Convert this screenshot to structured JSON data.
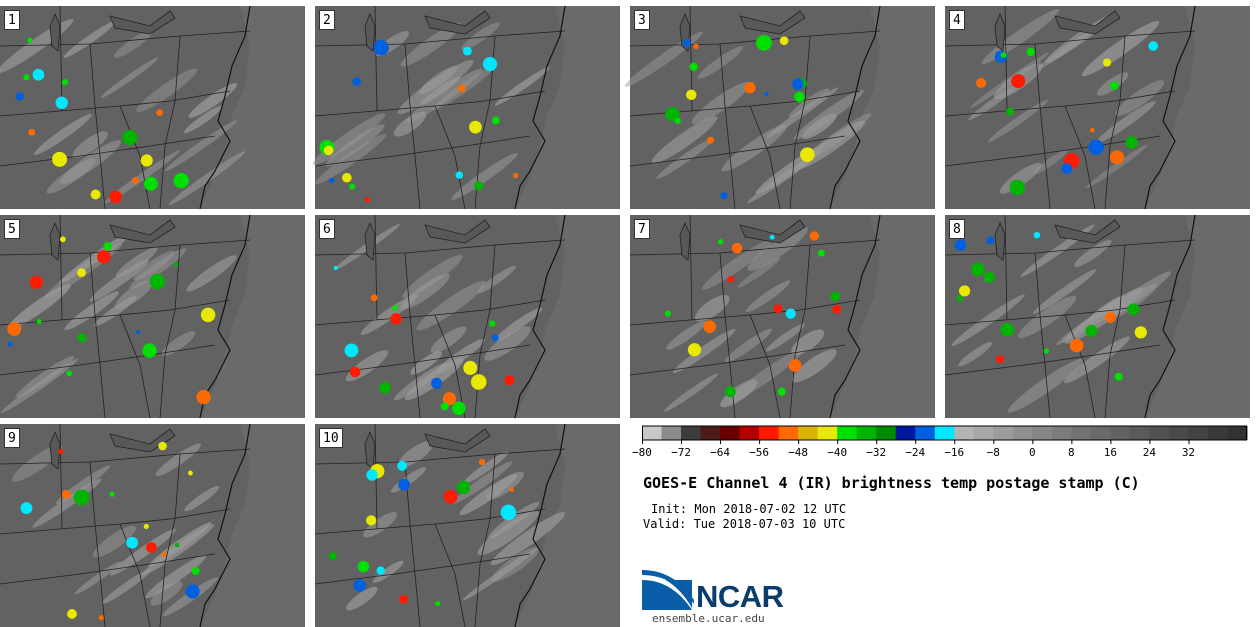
{
  "panels": [
    {
      "label": "1"
    },
    {
      "label": "2"
    },
    {
      "label": "3"
    },
    {
      "label": "4"
    },
    {
      "label": "5"
    },
    {
      "label": "6"
    },
    {
      "label": "7"
    },
    {
      "label": "8"
    },
    {
      "label": "9"
    },
    {
      "label": "10"
    }
  ],
  "colorbar": {
    "tick_labels": [
      "−80",
      "−72",
      "−64",
      "−56",
      "−48",
      "−40",
      "−32",
      "−24",
      "−16",
      "−8",
      "0",
      "8",
      "16",
      "24",
      "32"
    ],
    "colors": [
      "#c8c8c8",
      "#8a8a8a",
      "#3c3c3c",
      "#4d1a1a",
      "#6b0000",
      "#b30000",
      "#ff1a00",
      "#ff6a00",
      "#d9b300",
      "#e8e800",
      "#00e000",
      "#00b400",
      "#008c00",
      "#0018a0",
      "#0060e0",
      "#00e8ff",
      "#b4b4b4",
      "#a8a8a8",
      "#9c9c9c",
      "#909090",
      "#868686",
      "#7c7c7c",
      "#727272",
      "#6a6a6a",
      "#626262",
      "#5a5a5a",
      "#525252",
      "#4a4a4a",
      "#424242",
      "#3a3a3a",
      "#323232"
    ]
  },
  "title": "GOES-E Channel 4 (IR) brightness temp postage stamp (C)",
  "init": "Init: Mon 2018-07-02 12 UTC",
  "valid": "Valid: Tue 2018-07-03 10 UTC",
  "logo": {
    "name": "NCAR",
    "url": "ensemble.ucar.edu",
    "color": "#0a5ea8"
  }
}
